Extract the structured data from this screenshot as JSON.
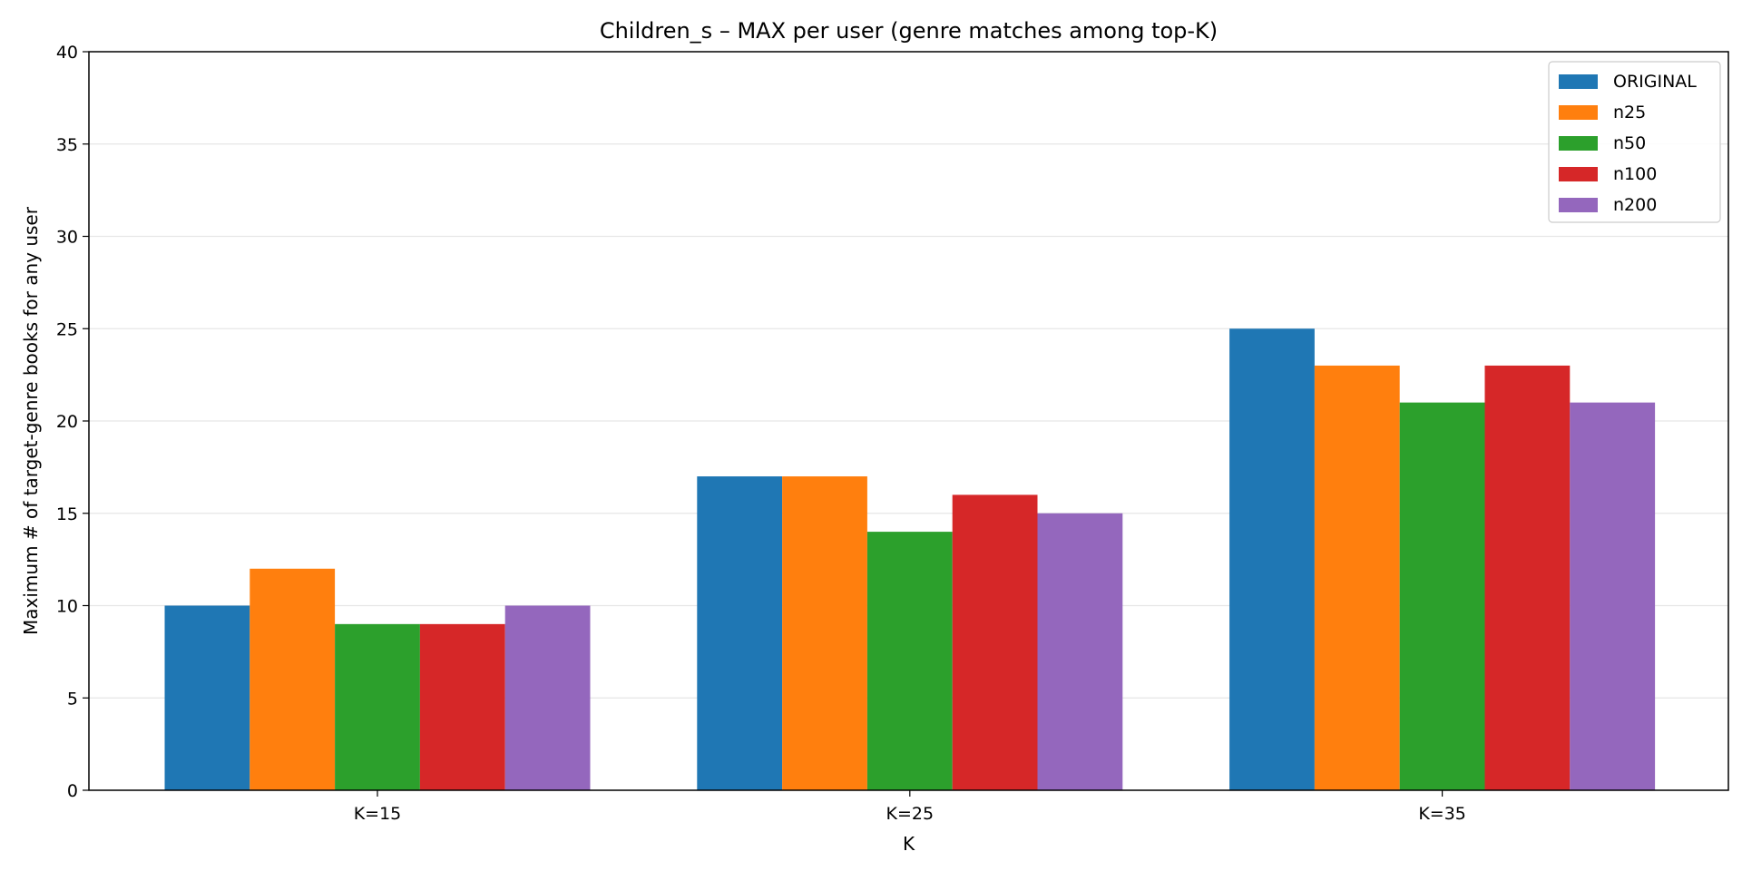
{
  "chart_data": {
    "type": "bar",
    "title": "Children_s – MAX per user (genre matches among top-K)",
    "xlabel": "K",
    "ylabel": "Maximum # of target-genre books for any user",
    "categories": [
      "K=15",
      "K=25",
      "K=35"
    ],
    "ylim": [
      0,
      40
    ],
    "yticks": [
      0,
      5,
      10,
      15,
      20,
      25,
      30,
      35,
      40
    ],
    "grid": "horizontal",
    "legend_position": "top-right",
    "series": [
      {
        "name": "ORIGINAL",
        "color": "#1f77b4",
        "values": [
          10,
          17,
          25
        ]
      },
      {
        "name": "n25",
        "color": "#ff7f0e",
        "values": [
          12,
          17,
          23
        ]
      },
      {
        "name": "n50",
        "color": "#2ca02c",
        "values": [
          9,
          14,
          21
        ]
      },
      {
        "name": "n100",
        "color": "#d62728",
        "values": [
          9,
          16,
          23
        ]
      },
      {
        "name": "n200",
        "color": "#9467bd",
        "values": [
          10,
          15,
          21
        ]
      }
    ]
  }
}
